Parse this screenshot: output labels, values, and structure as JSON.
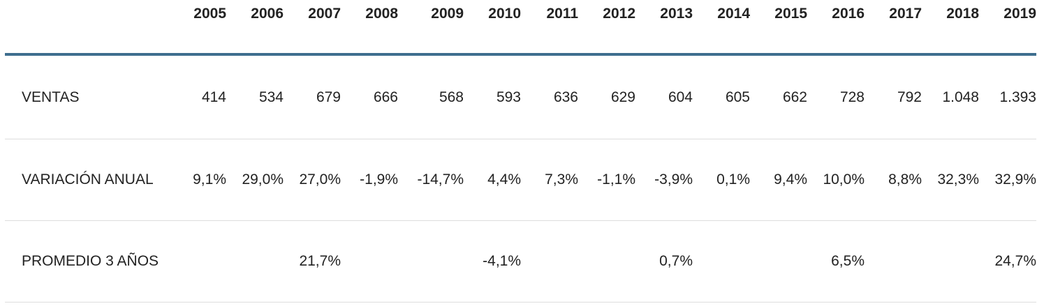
{
  "table": {
    "corner_label": "",
    "years": [
      "2005",
      "2006",
      "2007",
      "2008",
      "2009",
      "2010",
      "2011",
      "2012",
      "2013",
      "2014",
      "2015",
      "2016",
      "2017",
      "2018",
      "2019"
    ],
    "rows": [
      {
        "label": "VENTAS",
        "values": [
          "414",
          "534",
          "679",
          "666",
          "568",
          "593",
          "636",
          "629",
          "604",
          "605",
          "662",
          "728",
          "792",
          "1.048",
          "1.393"
        ]
      },
      {
        "label": "VARIACIÓN ANUAL",
        "values": [
          "9,1%",
          "29,0%",
          "27,0%",
          "-1,9%",
          "-14,7%",
          "4,4%",
          "7,3%",
          "-1,1%",
          "-3,9%",
          "0,1%",
          "9,4%",
          "10,0%",
          "8,8%",
          "32,3%",
          "32,9%"
        ]
      },
      {
        "label": "PROMEDIO 3 AÑOS",
        "values": [
          "",
          "",
          "21,7%",
          "",
          "",
          "-4,1%",
          "",
          "",
          "0,7%",
          "",
          "",
          "6,5%",
          "",
          "",
          "24,7%"
        ]
      }
    ]
  },
  "colors": {
    "header_rule": "#3e6e8e",
    "row_divider": "#dddddd",
    "text": "#222222"
  }
}
